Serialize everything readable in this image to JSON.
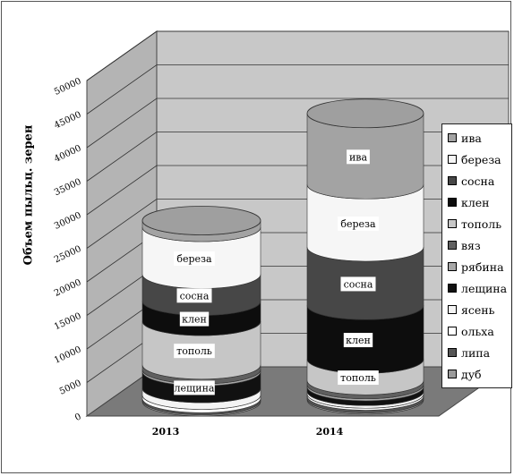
{
  "chart_data": {
    "type": "bar",
    "categories": [
      "2013",
      "2014"
    ],
    "ylabel": "Объем пыльц. зерен",
    "xlabel": "",
    "ylim": [
      0,
      50000
    ],
    "yticks": [
      "0",
      "5000",
      "10000",
      "15000",
      "20000",
      "25000",
      "30000",
      "35000",
      "40000",
      "45000",
      "50000"
    ],
    "legend_position": "right",
    "series": [
      {
        "name": "дуб",
        "color": "#9a9a9a",
        "values": [
          200,
          200
        ]
      },
      {
        "name": "липа",
        "color": "#555555",
        "values": [
          300,
          400
        ]
      },
      {
        "name": "ольха",
        "color": "#ffffff",
        "values": [
          500,
          300
        ]
      },
      {
        "name": "ясень",
        "color": "#f4f4f4",
        "values": [
          1000,
          400
        ]
      },
      {
        "name": "лещина",
        "color": "#111111",
        "values": [
          2500,
          700
        ]
      },
      {
        "name": "рябина",
        "color": "#a8a8a8",
        "values": [
          300,
          300
        ]
      },
      {
        "name": "вяз",
        "color": "#606060",
        "values": [
          700,
          600
        ]
      },
      {
        "name": "тополь",
        "color": "#c6c6c6",
        "values": [
          6500,
          3200
        ]
      },
      {
        "name": "клен",
        "color": "#0d0d0d",
        "values": [
          3000,
          8000
        ]
      },
      {
        "name": "сосна",
        "color": "#474747",
        "values": [
          4000,
          8700
        ]
      },
      {
        "name": "береза",
        "color": "#f6f6f6",
        "values": [
          7000,
          9300
        ]
      },
      {
        "name": "ива",
        "color": "#a3a3a3",
        "values": [
          1000,
          10600
        ]
      }
    ],
    "data_labels": [
      [
        null,
        null,
        null,
        null,
        "лещина",
        null,
        null,
        "тополь",
        "клен",
        "сосна",
        "береза",
        null
      ],
      [
        null,
        null,
        null,
        null,
        null,
        null,
        null,
        "тополь",
        "клен",
        "сосна",
        "береза",
        "ива"
      ]
    ],
    "legend_order": [
      "ива",
      "береза",
      "сосна",
      "клен",
      "тополь",
      "вяз",
      "рябина",
      "лещина",
      "ясень",
      "ольха",
      "липа",
      "дуб"
    ]
  }
}
